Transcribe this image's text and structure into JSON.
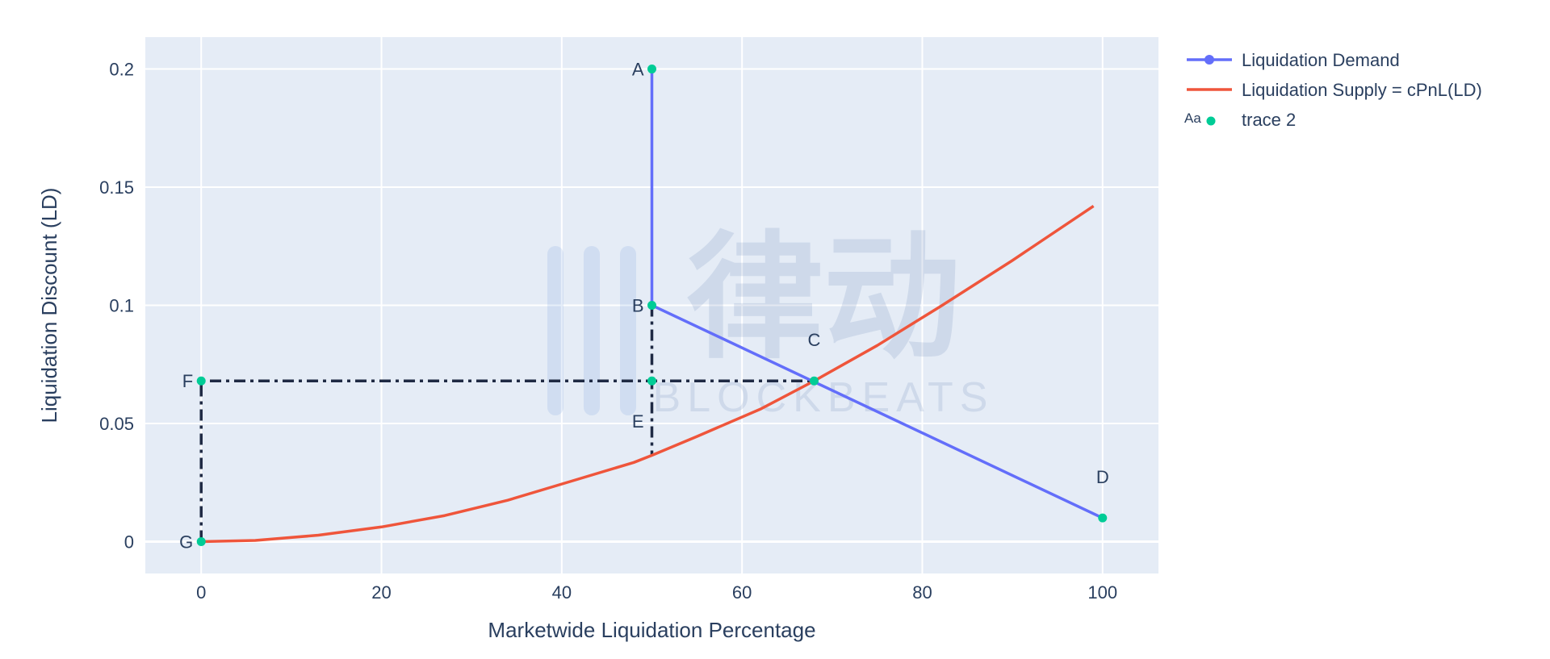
{
  "chart_data": {
    "type": "line",
    "xlabel": "Marketwide Liquidation Percentage",
    "ylabel": "Liquidation Discount (LD)",
    "xlim": [
      -6.2,
      106.2
    ],
    "ylim": [
      -0.0135,
      0.2135
    ],
    "x_ticks": [
      0,
      20,
      40,
      60,
      80,
      100
    ],
    "x_tick_labels": [
      "0",
      "20",
      "40",
      "60",
      "80",
      "100"
    ],
    "y_ticks": [
      0,
      0.05,
      0.1,
      0.15,
      0.2
    ],
    "y_tick_labels": [
      "0",
      "0.05",
      "0.1",
      "0.15",
      "0.2"
    ],
    "grid": true,
    "legend_position": "top-right outside",
    "series": [
      {
        "name": "Liquidation Demand",
        "kind": "lines+markers",
        "color": "#636efa",
        "x": [
          50,
          50,
          100
        ],
        "y": [
          0.2,
          0.1,
          0.01
        ]
      },
      {
        "name": "Liquidation Supply = cPnL(LD)",
        "kind": "line",
        "color": "#ef553b",
        "x": [
          0,
          6,
          13,
          20,
          27,
          34,
          41,
          48,
          50,
          55,
          62,
          68,
          75,
          82,
          90,
          99
        ],
        "y": [
          0,
          0.0005,
          0.0027,
          0.0062,
          0.011,
          0.0175,
          0.0255,
          0.0335,
          0.0365,
          0.0445,
          0.056,
          0.068,
          0.083,
          0.0995,
          0.119,
          0.142
        ]
      },
      {
        "name": "trace 2",
        "kind": "markers+text",
        "color": "#00cc96",
        "legend_symbol_text": "Aa",
        "points": [
          {
            "label": "A",
            "x": 50,
            "y": 0.2,
            "pos": "left"
          },
          {
            "label": "B",
            "x": 50,
            "y": 0.1,
            "pos": "left"
          },
          {
            "label": "C",
            "x": 68,
            "y": 0.068,
            "pos": "top"
          },
          {
            "label": "D",
            "x": 100,
            "y": 0.01,
            "pos": "top"
          },
          {
            "label": "E",
            "x": 50,
            "y": 0.068,
            "pos": "bottom-left"
          },
          {
            "label": "F",
            "x": 0,
            "y": 0.068,
            "pos": "left"
          },
          {
            "label": "G",
            "x": 0,
            "y": 0,
            "pos": "left"
          }
        ]
      }
    ],
    "reference_lines": {
      "color": "#1f2a44",
      "style": "dashdot",
      "paths": [
        [
          [
            0,
            0
          ],
          [
            0,
            0.068
          ],
          [
            68,
            0.068
          ]
        ],
        [
          [
            50,
            0.1
          ],
          [
            50,
            0.0365
          ]
        ]
      ]
    }
  },
  "watermark": {
    "name_cn": "律动",
    "name_en": "BLOCKBEATS"
  }
}
